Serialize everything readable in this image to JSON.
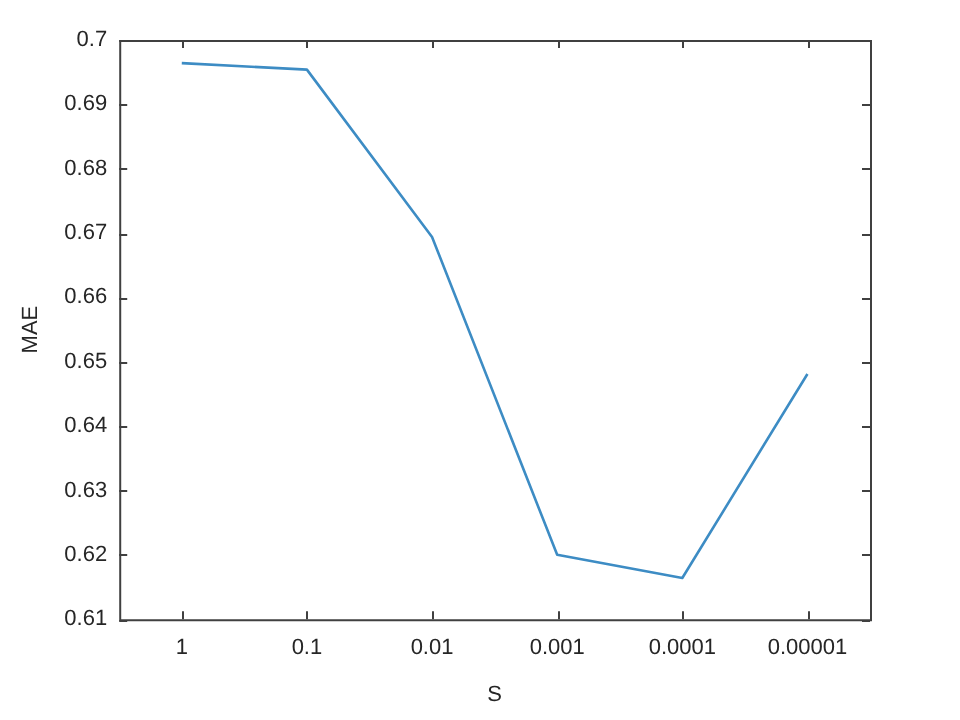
{
  "chart_data": {
    "type": "line",
    "xlabel": "S",
    "ylabel": "MAE",
    "categories": [
      "1",
      "0.1",
      "0.01",
      "0.001",
      "0.0001",
      "0.00001"
    ],
    "series": [
      {
        "color": "#3d8cc4",
        "values": [
          0.6964,
          0.6954,
          0.6694,
          0.62,
          0.6164,
          0.6481
        ]
      }
    ],
    "ylim": [
      0.61,
      0.7
    ],
    "yticks": [
      0.61,
      0.62,
      0.63,
      0.64,
      0.65,
      0.66,
      0.67,
      0.68,
      0.69,
      0.7
    ],
    "grid": false,
    "legend": false,
    "marker": "none",
    "line_style": "solid"
  }
}
